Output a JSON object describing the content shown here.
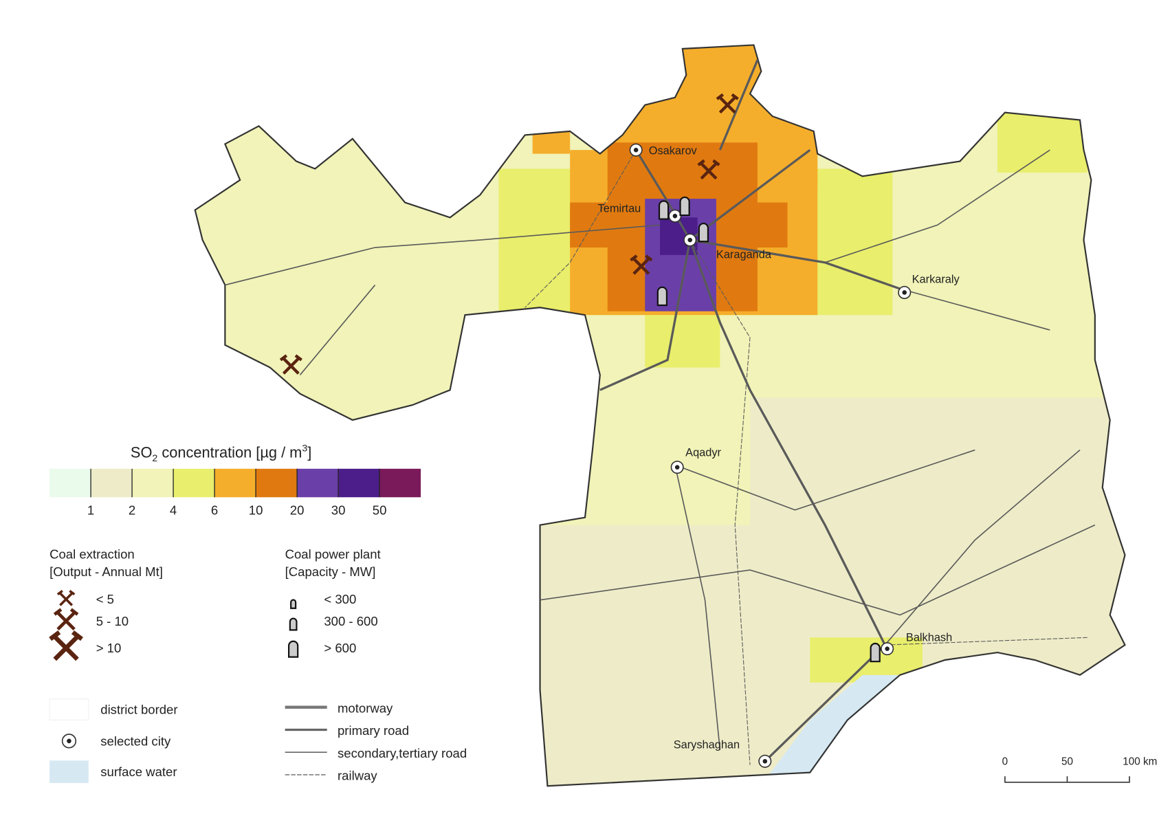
{
  "legend": {
    "so2": {
      "title": [
        "SO",
        "2",
        " concentration [µg / m",
        "3",
        "]"
      ],
      "colors": [
        "#eafbec",
        "#eeecc8",
        "#f1f3b8",
        "#e9ee6c",
        "#f5ae2b",
        "#e07a10",
        "#6a3fa8",
        "#4b1e8a",
        "#7a1a5a"
      ],
      "ticks": [
        1,
        2,
        4,
        6,
        10,
        20,
        30,
        50
      ]
    },
    "coal_extraction": {
      "title": [
        "Coal extraction",
        "[Output - Annual Mt]"
      ],
      "items": [
        "< 5",
        "5 - 10",
        "> 10"
      ]
    },
    "power_plant": {
      "title": [
        "Coal power plant",
        "[Capacity - MW]"
      ],
      "items": [
        "< 300",
        "300 - 600",
        "> 600"
      ]
    },
    "features": [
      "district border",
      "selected city",
      "surface water"
    ],
    "roads": [
      "motorway",
      "primary road",
      "secondary,tertiary road",
      "railway"
    ]
  },
  "cities": [
    "Osakarov",
    "Temirtau",
    "Karaganda",
    "Karkaraly",
    "Aqadyr",
    "Balkhash",
    "Saryshaghan"
  ],
  "scale_bar": [
    "0",
    "50",
    "100 km"
  ]
}
